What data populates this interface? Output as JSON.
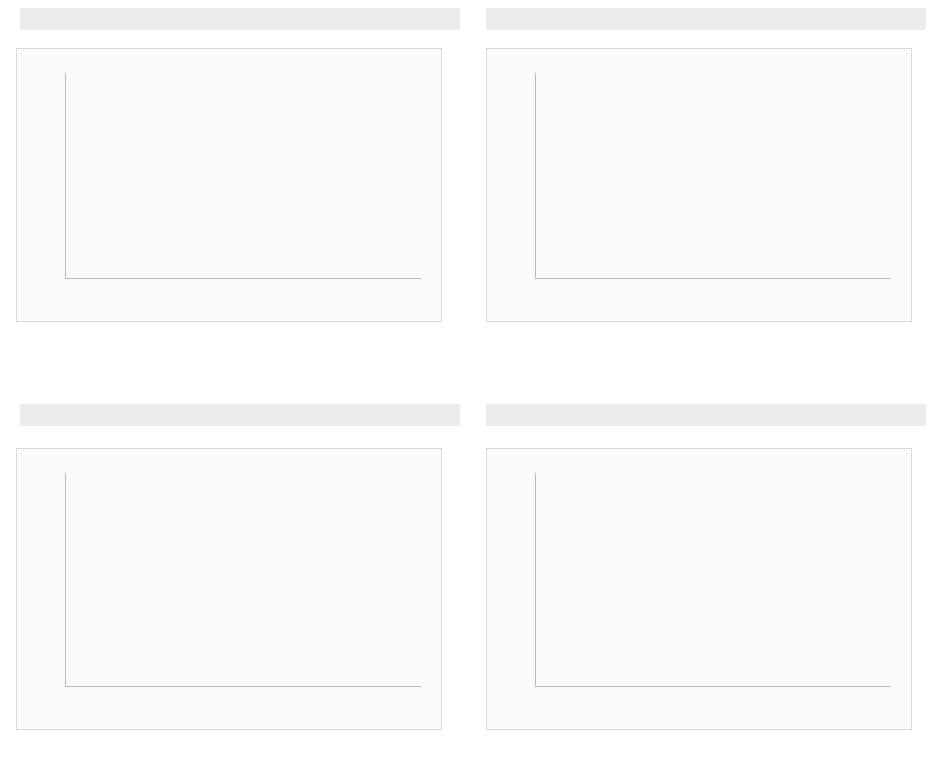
{
  "panels": [
    {
      "id": "figure-1"
    },
    {
      "id": "figure-2"
    },
    {
      "id": "figure-3"
    },
    {
      "id": "figure-4"
    }
  ]
}
